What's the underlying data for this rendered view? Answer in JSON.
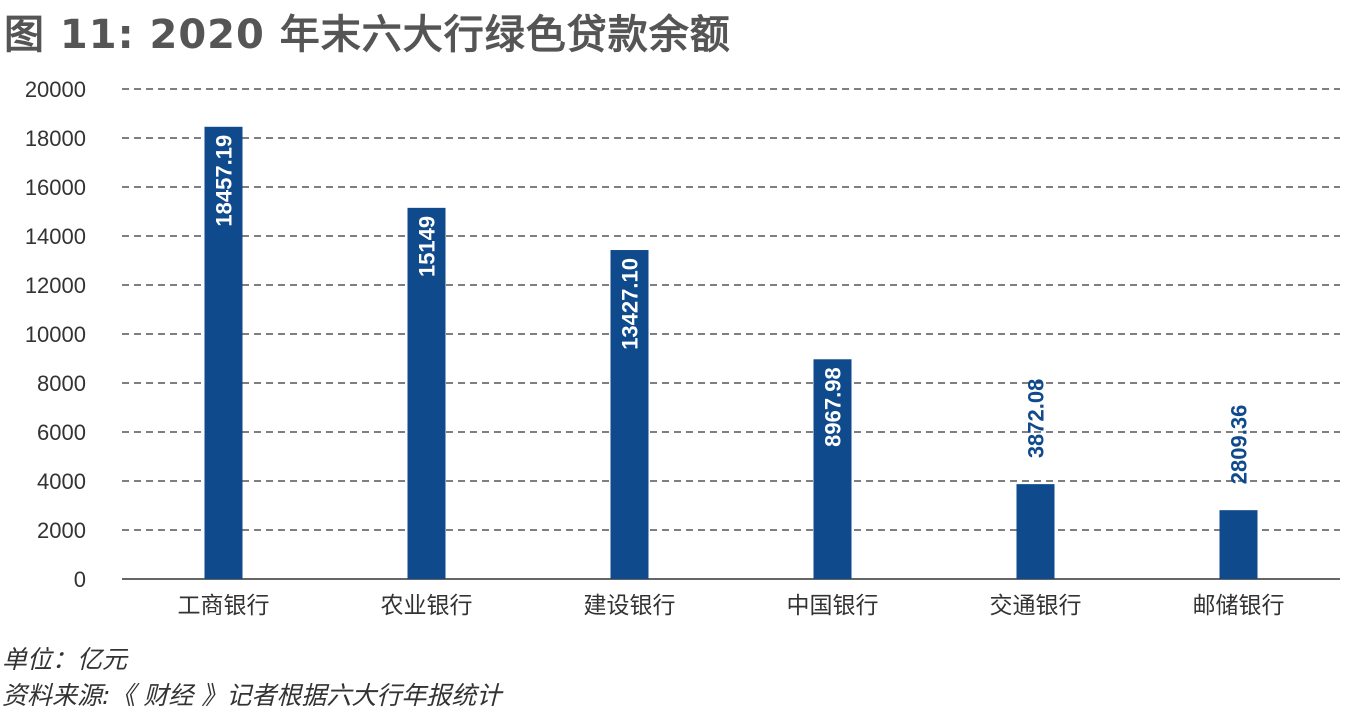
{
  "title": "图 11: 2020 年末六大行绿色贷款余额",
  "unit_note": "单位：亿元",
  "source_note": "资料来源:《 财经 》记者根据六大行年报统计",
  "colors": {
    "bar": "#0f4a8c",
    "grid": "#333333",
    "label_inside": "#ffffff",
    "label_outside": "#0f4a8c"
  },
  "chart_data": {
    "type": "bar",
    "title": "图 11: 2020 年末六大行绿色贷款余额",
    "xlabel": "",
    "ylabel": "",
    "categories": [
      "工商银行",
      "农业银行",
      "建设银行",
      "中国银行",
      "交通银行",
      "邮储银行"
    ],
    "values": [
      18457.19,
      15149,
      13427.1,
      8967.98,
      3872.08,
      2809.36
    ],
    "value_labels": [
      "18457.19",
      "15149",
      "13427.10",
      "8967.98",
      "3872.08",
      "2809.36"
    ],
    "ylim": [
      0,
      20000
    ],
    "yticks": [
      0,
      2000,
      4000,
      6000,
      8000,
      10000,
      12000,
      14000,
      16000,
      18000,
      20000
    ],
    "grid": true,
    "grid_style": "dashed",
    "legend": "none"
  }
}
